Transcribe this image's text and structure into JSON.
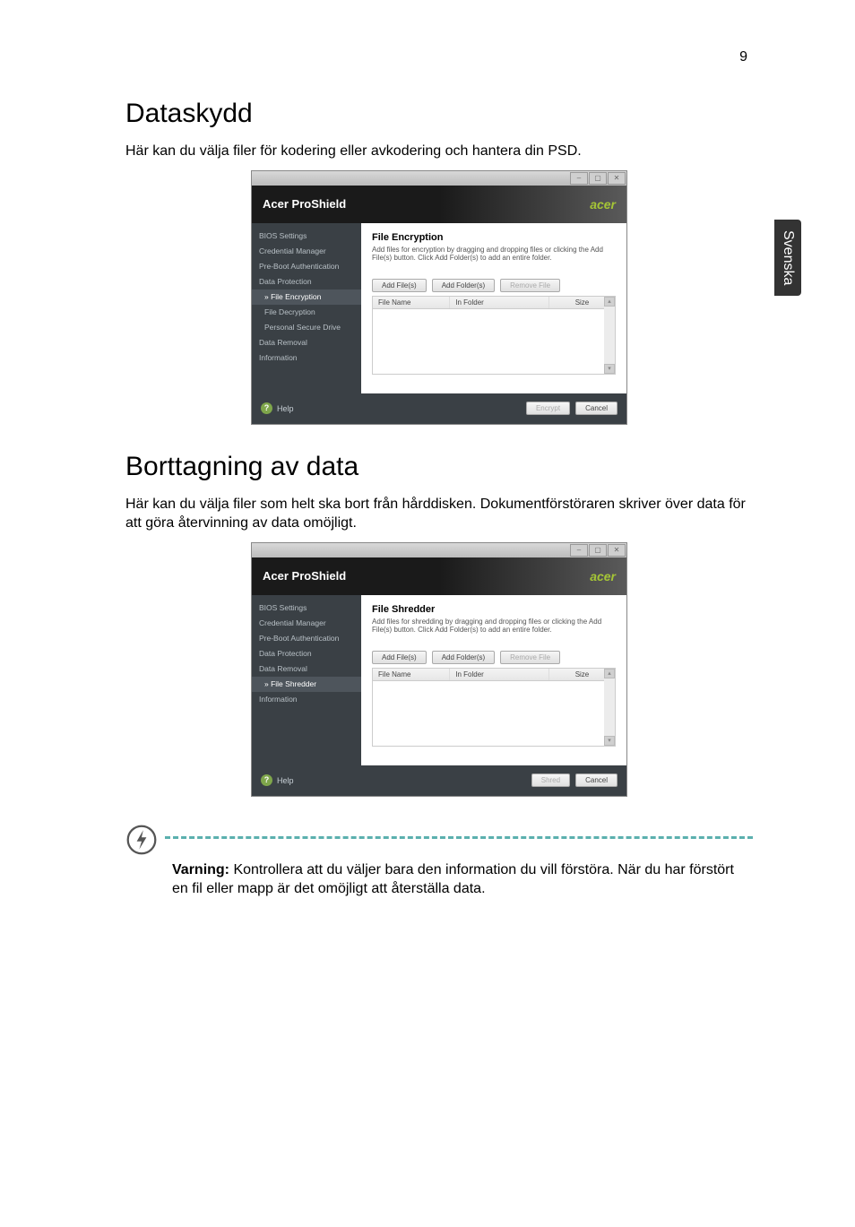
{
  "pageNumber": "9",
  "sideTab": "Svenska",
  "section1": {
    "heading": "Dataskydd",
    "text": "Här kan du välja filer för kodering eller avkodering och hantera din PSD."
  },
  "section2": {
    "heading": "Borttagning av data",
    "text": "Här kan du välja filer som helt ska bort från hårddisken. Dokumentförstöraren skriver över data för att göra återvinning av data omöjligt."
  },
  "screenshot1": {
    "titleIcon": "ProShield",
    "headerTitle": "Acer ProShield",
    "headerLogo": "acer",
    "sidebar": [
      {
        "label": "BIOS Settings",
        "sub": false,
        "active": false
      },
      {
        "label": "Credential Manager",
        "sub": false,
        "active": false
      },
      {
        "label": "Pre-Boot Authentication",
        "sub": false,
        "active": false
      },
      {
        "label": "Data Protection",
        "sub": false,
        "active": false
      },
      {
        "label": "» File Encryption",
        "sub": true,
        "active": true
      },
      {
        "label": "File Decryption",
        "sub": true,
        "active": false
      },
      {
        "label": "Personal Secure Drive",
        "sub": true,
        "active": false
      },
      {
        "label": "Data Removal",
        "sub": false,
        "active": false
      },
      {
        "label": "Information",
        "sub": false,
        "active": false
      }
    ],
    "mainTitle": "File Encryption",
    "mainDesc": "Add files for encryption by dragging and dropping files or clicking the Add File(s) button. Click Add Folder(s) to add an entire folder.",
    "buttons": {
      "addFiles": "Add File(s)",
      "addFolders": "Add Folder(s)",
      "removeFile": "Remove File"
    },
    "columns": {
      "c1": "File Name",
      "c2": "In Folder",
      "c3": "Size"
    },
    "help": "Help",
    "footer": {
      "primary": "Encrypt",
      "cancel": "Cancel"
    }
  },
  "screenshot2": {
    "titleIcon": "ProShield",
    "headerTitle": "Acer ProShield",
    "headerLogo": "acer",
    "sidebar": [
      {
        "label": "BIOS Settings",
        "sub": false,
        "active": false
      },
      {
        "label": "Credential Manager",
        "sub": false,
        "active": false
      },
      {
        "label": "Pre-Boot Authentication",
        "sub": false,
        "active": false
      },
      {
        "label": "Data Protection",
        "sub": false,
        "active": false
      },
      {
        "label": "Data Removal",
        "sub": false,
        "active": false
      },
      {
        "label": "» File Shredder",
        "sub": true,
        "active": true
      },
      {
        "label": "Information",
        "sub": false,
        "active": false
      }
    ],
    "mainTitle": "File Shredder",
    "mainDesc": "Add files for shredding by dragging and dropping files or clicking the Add File(s) button. Click Add Folder(s) to add an entire folder.",
    "buttons": {
      "addFiles": "Add File(s)",
      "addFolders": "Add Folder(s)",
      "removeFile": "Remove File"
    },
    "columns": {
      "c1": "File Name",
      "c2": "In Folder",
      "c3": "Size"
    },
    "help": "Help",
    "footer": {
      "primary": "Shred",
      "cancel": "Cancel"
    }
  },
  "warning": {
    "label": "Varning:",
    "text": " Kontrollera att du väljer bara den information du vill förstöra. När du har förstört en fil eller mapp är det omöjligt att återställa data."
  }
}
